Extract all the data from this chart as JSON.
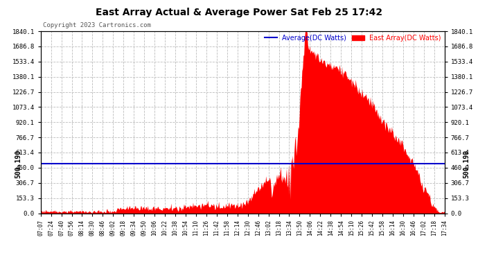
{
  "title": "East Array Actual & Average Power Sat Feb 25 17:42",
  "copyright": "Copyright 2023 Cartronics.com",
  "legend_avg": "Average(DC Watts)",
  "legend_east": "East Array(DC Watts)",
  "avg_value": 500.19,
  "left_label": "500.190",
  "right_label": "500.190",
  "y_max": 1840.1,
  "y_ticks": [
    0.0,
    153.3,
    306.7,
    460.0,
    613.4,
    766.7,
    920.1,
    1073.4,
    1226.7,
    1380.1,
    1533.4,
    1686.8,
    1840.1
  ],
  "bg_color": "#ffffff",
  "grid_color": "#bbbbbb",
  "fill_color": "#ff0000",
  "avg_line_color": "#0000cc",
  "x_ticks": [
    "07:07",
    "07:24",
    "07:40",
    "07:56",
    "08:14",
    "08:30",
    "08:46",
    "09:02",
    "09:18",
    "09:34",
    "09:50",
    "10:06",
    "10:22",
    "10:38",
    "10:54",
    "11:10",
    "11:26",
    "11:42",
    "11:58",
    "12:14",
    "12:30",
    "12:46",
    "13:02",
    "13:18",
    "13:34",
    "13:50",
    "14:06",
    "14:22",
    "14:38",
    "14:54",
    "15:10",
    "15:26",
    "15:42",
    "15:58",
    "16:14",
    "16:30",
    "16:46",
    "17:02",
    "17:18",
    "17:34"
  ]
}
